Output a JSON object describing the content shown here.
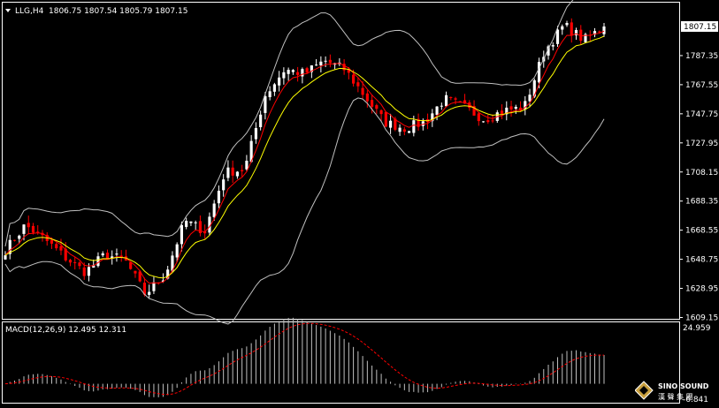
{
  "header": {
    "symbol": "LLG,H4",
    "ohlc": "1806.75 1807.54 1805.79 1807.15",
    "menu_icon": "triangle-down-icon"
  },
  "chart_data": {
    "type": "candlestick",
    "main": {
      "ylim": [
        1609.15,
        1815.0
      ],
      "y_ticks": [
        "1807.15",
        "1787.35",
        "1767.55",
        "1747.75",
        "1727.95",
        "1708.15",
        "1688.35",
        "1668.55",
        "1648.75",
        "1628.95",
        "1609.15"
      ],
      "last_price": "1807.15",
      "bullish_color": "#ffffff",
      "bearish_color": "#ff0000",
      "ma_fast_color": "#ff0000",
      "ma_slow_color": "#ffff00",
      "bands_color": "#c0c0c0",
      "key_closes": [
        1655,
        1672,
        1662,
        1650,
        1640,
        1652,
        1648,
        1625,
        1638,
        1675,
        1668,
        1708,
        1710,
        1760,
        1778,
        1775,
        1784,
        1778,
        1760,
        1742,
        1738,
        1742,
        1758,
        1752,
        1744,
        1750,
        1752,
        1790,
        1808,
        1798,
        1807
      ]
    },
    "macd": {
      "label": "MACD(12,26,9) 12.495 12.311",
      "y_ticks": [
        "24.959",
        "-6.841"
      ],
      "ylim": [
        -6.841,
        24.959
      ],
      "histogram_color": "#c0c0c0",
      "signal_color": "#ff0000"
    }
  },
  "watermark": {
    "brand": "SINO SOUND",
    "chinese": "漢 聲 集 團",
    "icon": "diamond-logo-icon"
  }
}
